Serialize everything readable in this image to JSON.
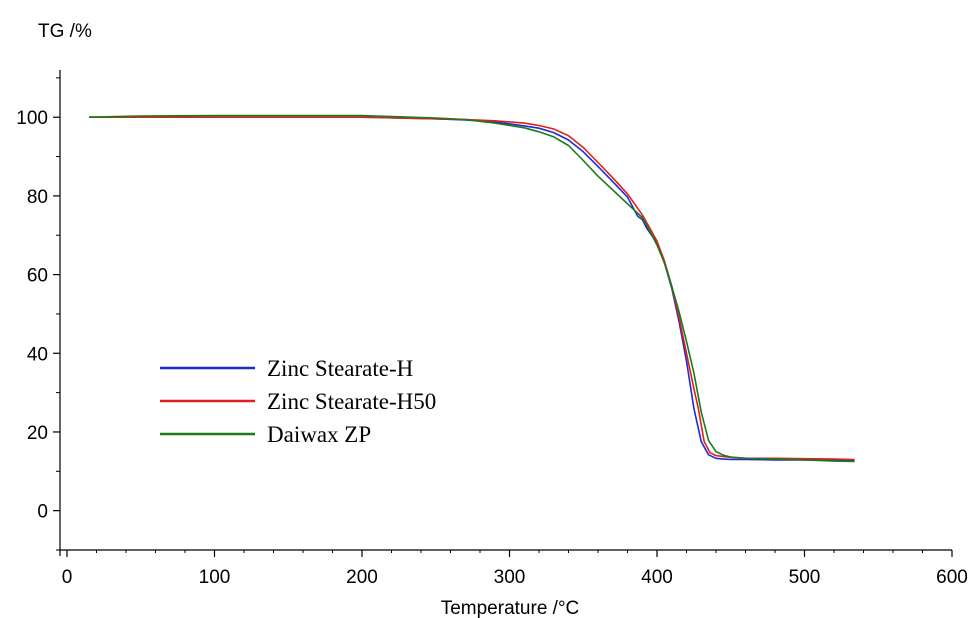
{
  "chart_data": {
    "type": "line",
    "ylabel": "TG /%",
    "xlabel": "Temperature /°C",
    "xlim": [
      0,
      600
    ],
    "ylim": [
      -10,
      112
    ],
    "x_ticks": [
      "0",
      "100",
      "200",
      "300",
      "400",
      "500",
      "600"
    ],
    "y_ticks": [
      "0",
      "20",
      "40",
      "60",
      "80",
      "100"
    ],
    "grid": false,
    "legend_position": "bottom-left",
    "series": [
      {
        "name": "Zinc Stearate-H",
        "color": "#1f2bd6",
        "x": [
          15,
          50,
          100,
          150,
          200,
          250,
          270,
          290,
          310,
          320,
          330,
          340,
          350,
          360,
          370,
          380,
          387,
          390,
          393,
          400,
          405,
          410,
          415,
          420,
          425,
          430,
          435,
          440,
          445,
          450,
          460,
          480,
          500,
          520,
          534
        ],
        "y": [
          100,
          100,
          100,
          100,
          100,
          99.6,
          99.3,
          98.8,
          97.8,
          97.2,
          96.1,
          94.2,
          91.2,
          87.5,
          83.6,
          79.7,
          74.8,
          74.0,
          71.8,
          68.0,
          63.0,
          56.5,
          48.0,
          38.0,
          26.0,
          17.5,
          14.2,
          13.3,
          13.1,
          13.0,
          13.0,
          12.9,
          12.9,
          12.8,
          12.8
        ]
      },
      {
        "name": "Zinc Stearate-H50",
        "color": "#e0201b",
        "x": [
          15,
          50,
          100,
          150,
          200,
          250,
          270,
          290,
          310,
          320,
          330,
          340,
          350,
          360,
          370,
          380,
          390,
          395,
          400,
          405,
          410,
          415,
          420,
          425,
          428,
          432,
          436,
          440,
          450,
          460,
          480,
          500,
          520,
          534
        ],
        "y": [
          100,
          100,
          100,
          100,
          100,
          99.6,
          99.4,
          99.1,
          98.5,
          97.9,
          97.0,
          95.3,
          92.3,
          88.5,
          84.6,
          80.5,
          75.2,
          71.9,
          68.5,
          63.5,
          57.0,
          49.0,
          40.0,
          31.0,
          26.0,
          17.5,
          14.7,
          14.0,
          13.5,
          13.3,
          13.3,
          13.2,
          13.1,
          13.0
        ]
      },
      {
        "name": "Daiwax ZP",
        "color": "#1b7a1b",
        "x": [
          15,
          50,
          100,
          150,
          200,
          250,
          270,
          290,
          310,
          320,
          330,
          340,
          350,
          360,
          370,
          380,
          390,
          395,
          400,
          405,
          410,
          415,
          420,
          425,
          430,
          435,
          440,
          445,
          450,
          460,
          480,
          500,
          520,
          534
        ],
        "y": [
          100,
          100.3,
          100.4,
          100.4,
          100.4,
          99.8,
          99.4,
          98.5,
          97.3,
          96.3,
          95.0,
          92.8,
          89.0,
          85.0,
          81.5,
          78.0,
          74.5,
          71.2,
          67.5,
          63.0,
          57.0,
          50.5,
          43.0,
          35.0,
          25.0,
          17.8,
          15.0,
          14.1,
          13.6,
          13.3,
          13.1,
          12.9,
          12.6,
          12.5
        ]
      }
    ]
  }
}
